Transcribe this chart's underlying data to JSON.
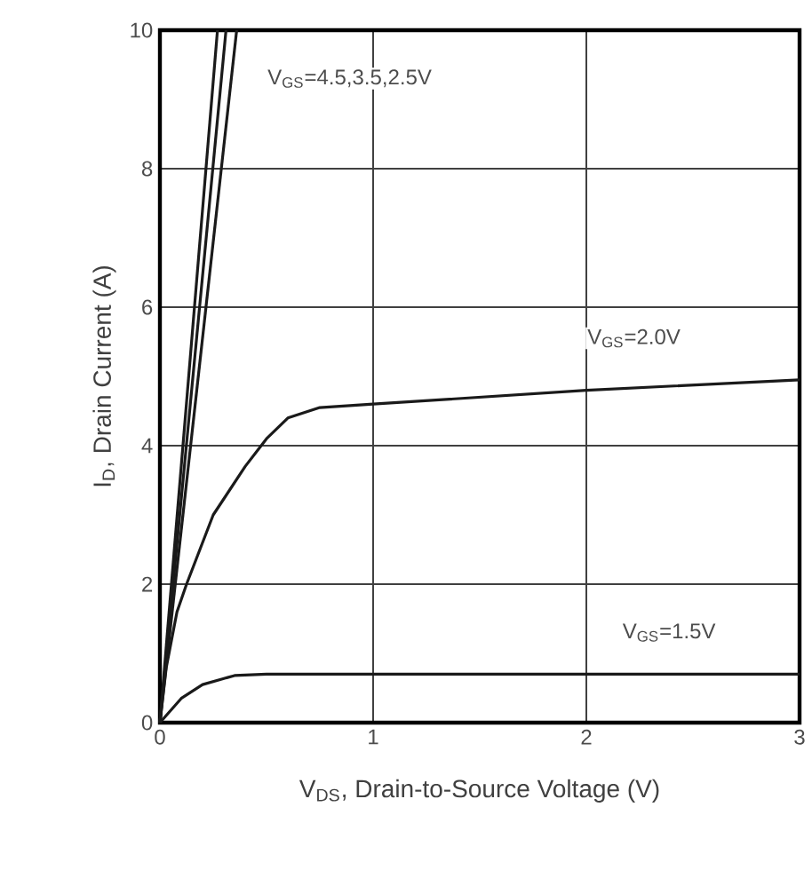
{
  "chart_data": {
    "type": "line",
    "xlabel": "V$_{DS}$, Drain-to-Source Voltage (V)",
    "ylabel": "I$_{D}$, Drain Current (A)",
    "xlim": [
      0,
      3
    ],
    "ylim": [
      0,
      10
    ],
    "xticks": [
      0,
      1,
      2,
      3
    ],
    "yticks": [
      0,
      2,
      4,
      6,
      8,
      10
    ],
    "grid": true,
    "marker": "none",
    "line_style": "solid",
    "series": [
      {
        "color": "#1a1a1a",
        "x": [
          0,
          0.27
        ],
        "values": [
          0,
          10
        ]
      },
      {
        "color": "#1a1a1a",
        "x": [
          0,
          0.31
        ],
        "values": [
          0,
          10
        ]
      },
      {
        "color": "#1a1a1a",
        "x": [
          0,
          0.36
        ],
        "values": [
          0,
          10
        ]
      },
      {
        "color": "#1a1a1a",
        "x": [
          0,
          0.03,
          0.08,
          0.125,
          0.25,
          0.4,
          0.5,
          0.6,
          0.75,
          1,
          2,
          3
        ],
        "values": [
          0,
          0.8,
          1.6,
          2.0,
          3.0,
          3.7,
          4.1,
          4.4,
          4.55,
          4.6,
          4.8,
          4.95
        ]
      },
      {
        "color": "#1a1a1a",
        "x": [
          0,
          0.1,
          0.2,
          0.35,
          0.5,
          3
        ],
        "values": [
          0,
          0.35,
          0.55,
          0.68,
          0.7,
          0.7
        ]
      }
    ],
    "annotations": [
      "V$_{GS}$=4.5,3.5,2.5V",
      "V$_{GS}$=2.0V",
      "V$_{GS}$=1.5V"
    ]
  }
}
